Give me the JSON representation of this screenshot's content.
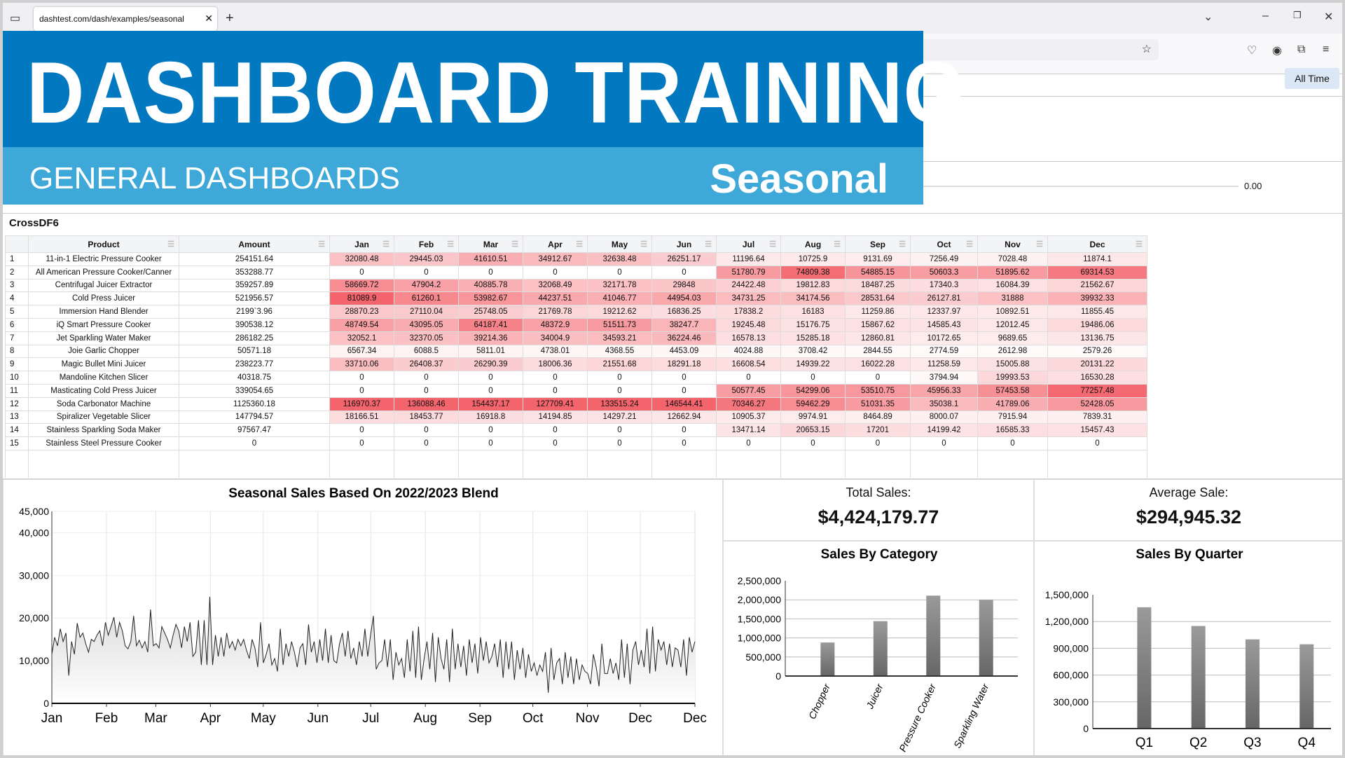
{
  "browser": {
    "tab_title": "dashtest.com/dash/examples/seasonal",
    "tab_close": "✕",
    "new_tab": "+"
  },
  "banner": {
    "title": "DASHBOARD TRAINING",
    "subtitle": "GENERAL DASHBOARDS",
    "section": "Seasonal",
    "colors": {
      "primary": "#0178bf",
      "secondary": "#3ea8d8"
    }
  },
  "filter": {
    "all_time": "All Time",
    "slider_value": "0.00"
  },
  "table": {
    "label": "CrossDF6",
    "columns": [
      "Product",
      "Amount",
      "Jan",
      "Feb",
      "Mar",
      "Apr",
      "May",
      "Jun",
      "Jul",
      "Aug",
      "Sep",
      "Oct",
      "Nov",
      "Dec"
    ],
    "heat_color": "#f4646c",
    "rows": [
      [
        "11-in-1 Electric Pressure Cooker",
        "254151.64",
        "32080.48",
        "29445.03",
        "41610.51",
        "34912.67",
        "32638.48",
        "26251.17",
        "11196.64",
        "10725.9",
        "9131.69",
        "7256.49",
        "7028.48",
        "11874.1"
      ],
      [
        "All American Pressure Cooker/Canner",
        "353288.77",
        "0",
        "0",
        "0",
        "0",
        "0",
        "0",
        "51780.79",
        "74809.38",
        "54885.15",
        "50603.3",
        "51895.62",
        "69314.53"
      ],
      [
        "Centrifugal Juicer Extractor",
        "359257.89",
        "58669.72",
        "47904.2",
        "40885.78",
        "32068.49",
        "32171.78",
        "29848",
        "24422.48",
        "19812.83",
        "18487.25",
        "17340.3",
        "16084.39",
        "21562.67"
      ],
      [
        "Cold Press Juicer",
        "521956.57",
        "81089.9",
        "61260.1",
        "53982.67",
        "44237.51",
        "41046.77",
        "44954.03",
        "34731.25",
        "34174.56",
        "28531.64",
        "26127.81",
        "31888",
        "39932.33"
      ],
      [
        "Immersion Hand Blender",
        "2199`3.96",
        "28870.23",
        "27110.04",
        "25748.05",
        "21769.78",
        "19212.62",
        "16836.25",
        "17838.2",
        "16183",
        "11259.86",
        "12337.97",
        "10892.51",
        "11855.45"
      ],
      [
        "iQ Smart Pressure Cooker",
        "390538.12",
        "48749.54",
        "43095.05",
        "64187.41",
        "48372.9",
        "51511.73",
        "38247.7",
        "19245.48",
        "15176.75",
        "15867.62",
        "14585.43",
        "12012.45",
        "19486.06"
      ],
      [
        "Jet Sparkling Water Maker",
        "286182.25",
        "32052.1",
        "32370.05",
        "39214.36",
        "34004.9",
        "34593.21",
        "36224.46",
        "16578.13",
        "15285.18",
        "12860.81",
        "10172.65",
        "9689.65",
        "13136.75"
      ],
      [
        "Joie Garlic Chopper",
        "50571.18",
        "6567.34",
        "6088.5",
        "5811.01",
        "4738.01",
        "4368.55",
        "4453.09",
        "4024.88",
        "3708.42",
        "2844.55",
        "2774.59",
        "2612.98",
        "2579.26"
      ],
      [
        "Magic Bullet Mini Juicer",
        "238223.77",
        "33710.06",
        "26408.37",
        "26290.39",
        "18006.36",
        "21551.68",
        "18291.18",
        "16608.54",
        "14939.22",
        "16022.28",
        "11258.59",
        "15005.88",
        "20131.22"
      ],
      [
        "Mandoline Kitchen Slicer",
        "40318.75",
        "0",
        "0",
        "0",
        "0",
        "0",
        "0",
        "0",
        "0",
        "0",
        "3794.94",
        "19993.53",
        "16530.28"
      ],
      [
        "Masticating Cold Press Juicer",
        "339054.65",
        "0",
        "0",
        "0",
        "0",
        "0",
        "0",
        "50577.45",
        "54299.06",
        "53510.75",
        "45956.33",
        "57453.58",
        "77257.48"
      ],
      [
        "Soda Carbonator Machine",
        "1125360.18",
        "116970.37",
        "136088.46",
        "154437.17",
        "127709.41",
        "133515.24",
        "146544.41",
        "70346.27",
        "59462.29",
        "51031.35",
        "35038.1",
        "41789.06",
        "52428.05"
      ],
      [
        "Spiralizer Vegetable Slicer",
        "147794.57",
        "18166.51",
        "18453.77",
        "16918.8",
        "14194.85",
        "14297.21",
        "12662.94",
        "10905.37",
        "9974.91",
        "8464.89",
        "8000.07",
        "7915.94",
        "7839.31"
      ],
      [
        "Stainless Sparkling Soda Maker",
        "97567.47",
        "0",
        "0",
        "0",
        "0",
        "0",
        "0",
        "13471.14",
        "20653.15",
        "17201",
        "14199.42",
        "16585.33",
        "15457.43"
      ],
      [
        "Stainless Steel Pressure Cooker",
        "0",
        "0",
        "0",
        "0",
        "0",
        "0",
        "0",
        "0",
        "0",
        "0",
        "0",
        "0",
        "0"
      ]
    ]
  },
  "kpis": {
    "total_label": "Total Sales:",
    "total_value": "$4,424,179.77",
    "avg_label": "Average Sale:",
    "avg_value": "$294,945.32"
  },
  "chart_data": [
    {
      "type": "area",
      "title": "Seasonal Sales Based On 2022/2023 Blend",
      "ylim": [
        0,
        45000
      ],
      "yticks": [
        0,
        10000,
        20000,
        30000,
        40000,
        45000
      ],
      "xticks": [
        "Jan",
        "Feb",
        "Mar",
        "Apr",
        "May",
        "Jun",
        "Jul",
        "Aug",
        "Sep",
        "Oct",
        "Nov",
        "Dec",
        "Dec"
      ],
      "grid": true,
      "values": [
        11500,
        15500,
        13500,
        17500,
        14500,
        16500,
        6500,
        14500,
        11500,
        18800,
        15500,
        16500,
        14000,
        12000,
        15000,
        14500,
        16000,
        17000,
        13500,
        19000,
        16000,
        18000,
        20200,
        15500,
        19000,
        17000,
        13500,
        12800,
        14500,
        20500,
        13500,
        14800,
        13000,
        14500,
        12000,
        22000,
        13500,
        14000,
        13000,
        18000,
        16500,
        15000,
        13000,
        16000,
        18500,
        17000,
        13000,
        18000,
        14500,
        19000,
        11000,
        12000,
        19500,
        9000,
        19500,
        9000,
        25000,
        9000,
        16000,
        11000,
        15500,
        11000,
        16500,
        13000,
        14500,
        12500,
        15000,
        13500,
        15000,
        12500,
        10500,
        15000,
        13000,
        8500,
        19000,
        9500,
        11500,
        14000,
        9000,
        10500,
        7500,
        17500,
        9000,
        14000,
        11000,
        14500,
        12000,
        8500,
        13000,
        14000,
        9000,
        18500,
        12000,
        14500,
        9500,
        15000,
        10000,
        17500,
        9500,
        16000,
        10000,
        9500,
        14000,
        16500,
        11000,
        17000,
        10500,
        13000,
        9000,
        14500,
        11000,
        17500,
        11000,
        16000,
        20500,
        8000,
        9500,
        10000,
        15000,
        8500,
        15000,
        5500,
        12000,
        9000,
        10500,
        6000,
        15000,
        7500,
        17000,
        6000,
        18000,
        5500,
        10500,
        14500,
        8000,
        16500,
        5000,
        15500,
        10500,
        8000,
        15000,
        5000,
        17500,
        8000,
        14000,
        8500,
        13500,
        6500,
        15000,
        9500,
        14000,
        7000,
        15500,
        10000,
        14500,
        9500,
        11000,
        14000,
        8500,
        15000,
        6000,
        14500,
        8000,
        14500,
        5500,
        12500,
        8000,
        13000,
        6000,
        11500,
        7500,
        9500,
        6500,
        9000,
        7500,
        12000,
        2500,
        13000,
        5500,
        9500,
        10500,
        4500,
        12000,
        6000,
        11000,
        4500,
        10500,
        5500,
        9000,
        7500,
        7000,
        4500,
        11500,
        8500,
        4000,
        14000,
        7000,
        7000,
        10500,
        7000,
        9500,
        5500,
        15000,
        6000,
        14000,
        4500,
        12500,
        14500,
        9000,
        12500,
        8500,
        17500,
        7000,
        18000,
        7500,
        15000,
        12500,
        14500,
        9000,
        14000,
        8500,
        13000,
        12500,
        8500,
        15000,
        6500,
        15500,
        12000,
        14500
      ]
    },
    {
      "type": "bar",
      "title": "Sales By Category",
      "categories": [
        "Chopper",
        "Juicer",
        "Pressure Cooker",
        "Sparkling Water"
      ],
      "values": [
        880000,
        1440000,
        2110000,
        2000000
      ],
      "ylim": [
        0,
        2500000
      ],
      "yticks": [
        "0",
        "500,000",
        "1,000,000",
        "1,500,000",
        "2,000,000",
        "2,500,000"
      ],
      "grid": true
    },
    {
      "type": "bar",
      "title": "Sales By Quarter",
      "categories": [
        "Q1",
        "Q2",
        "Q3",
        "Q4"
      ],
      "values": [
        1360000,
        1150000,
        1000000,
        945000
      ],
      "ylim": [
        0,
        1500000
      ],
      "yticks": [
        "0",
        "300,000",
        "600,000",
        "900,000",
        "1,200,000",
        "1,500,000"
      ],
      "grid": true
    }
  ]
}
